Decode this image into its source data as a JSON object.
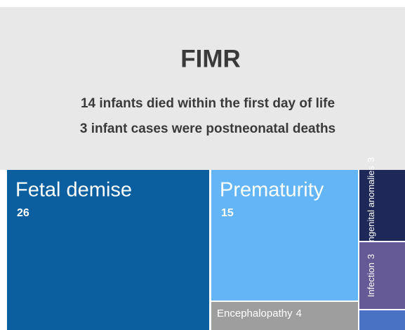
{
  "chart_data": {
    "type": "treemap",
    "title": "FIMR",
    "annotations": [
      "14 infants died within the first day of life",
      "3 infant cases were postneonatal deaths"
    ],
    "categories": [
      "Fetal demise",
      "Prematurity",
      "Encephalopathy",
      "Congenital anomalies",
      "Infection",
      null
    ],
    "values": [
      26,
      15,
      4,
      3,
      3,
      1
    ],
    "colors": [
      "#0b5f9f",
      "#64b5f6",
      "#9e9e9e",
      "#1e2859",
      "#665a96",
      "#4a72c4"
    ]
  }
}
